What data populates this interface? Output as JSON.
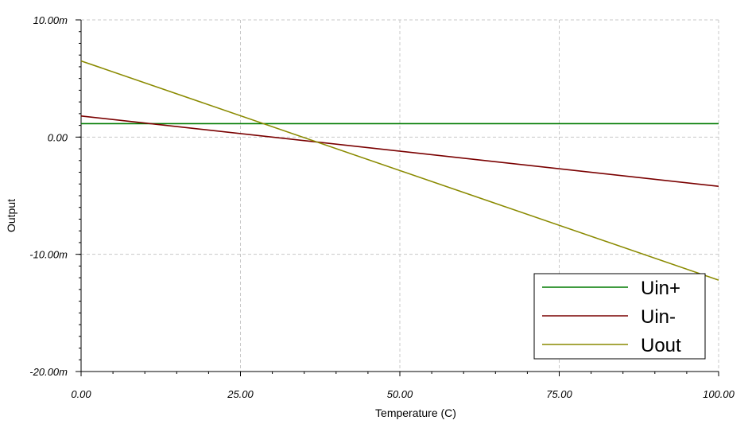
{
  "chart_data": {
    "type": "line",
    "xlabel": "Temperature (C)",
    "ylabel": "Output",
    "xlim": [
      0,
      100
    ],
    "ylim": [
      -0.02,
      0.01
    ],
    "x_ticks": [
      0,
      25,
      50,
      75,
      100
    ],
    "x_tick_labels": [
      "0.00",
      "25.00",
      "50.00",
      "75.00",
      "100.00"
    ],
    "y_ticks": [
      0.01,
      0.0,
      -0.01,
      -0.02
    ],
    "y_tick_labels": [
      "10.00m",
      "0.00",
      "-10.00m",
      "-20.00m"
    ],
    "grid": true,
    "legend_position": "bottom-right",
    "series": [
      {
        "name": "Uin+",
        "color": "#007a00",
        "x": [
          0,
          100
        ],
        "y": [
          0.00115,
          0.00115
        ]
      },
      {
        "name": "Uin-",
        "color": "#7a0000",
        "x": [
          0,
          100
        ],
        "y": [
          0.0018,
          -0.0042
        ]
      },
      {
        "name": "Uout",
        "color": "#8a8a00",
        "x": [
          0,
          100
        ],
        "y": [
          0.0065,
          -0.0122
        ]
      }
    ]
  }
}
